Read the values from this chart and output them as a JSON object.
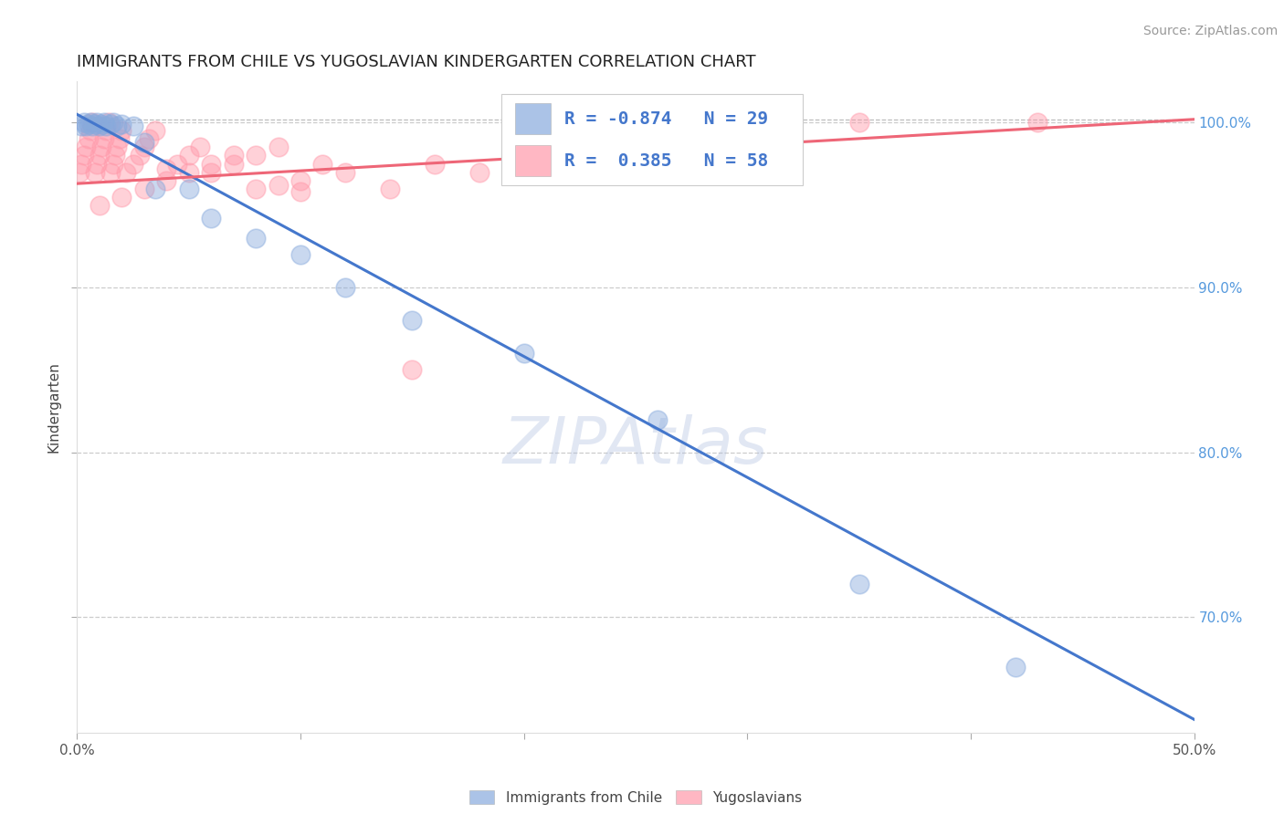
{
  "title": "IMMIGRANTS FROM CHILE VS YUGOSLAVIAN KINDERGARTEN CORRELATION CHART",
  "source": "Source: ZipAtlas.com",
  "xlabel_blue": "Immigrants from Chile",
  "xlabel_pink": "Yugoslavians",
  "ylabel": "Kindergarten",
  "watermark": "ZIPAtlas",
  "xlim": [
    0.0,
    0.5
  ],
  "ylim": [
    0.63,
    1.025
  ],
  "yticks": [
    0.7,
    0.8,
    0.9,
    1.0
  ],
  "ytick_labels": [
    "70.0%",
    "80.0%",
    "90.0%",
    "100.0%"
  ],
  "xticks": [
    0.0,
    0.1,
    0.2,
    0.3,
    0.4,
    0.5
  ],
  "xtick_labels": [
    "0.0%",
    "",
    "",
    "",
    "",
    "50.0%"
  ],
  "blue_R": -0.874,
  "blue_N": 29,
  "pink_R": 0.385,
  "pink_N": 58,
  "blue_color": "#88AADD",
  "pink_color": "#FF99AA",
  "blue_line_color": "#4477CC",
  "pink_line_color": "#EE6677",
  "title_fontsize": 13,
  "axis_label_fontsize": 11,
  "tick_fontsize": 11,
  "legend_fontsize": 14,
  "source_fontsize": 10,
  "watermark_fontsize": 52,
  "blue_scatter_x": [
    0.002,
    0.003,
    0.004,
    0.005,
    0.006,
    0.007,
    0.008,
    0.009,
    0.01,
    0.011,
    0.012,
    0.013,
    0.015,
    0.016,
    0.018,
    0.02,
    0.025,
    0.03,
    0.035,
    0.05,
    0.06,
    0.08,
    0.1,
    0.12,
    0.15,
    0.2,
    0.26,
    0.35,
    0.42
  ],
  "blue_scatter_y": [
    0.998,
    1.0,
    0.998,
    0.999,
    1.0,
    0.998,
    0.999,
    1.0,
    0.998,
    0.999,
    1.0,
    0.998,
    0.999,
    1.0,
    0.998,
    0.999,
    0.998,
    0.988,
    0.96,
    0.96,
    0.942,
    0.93,
    0.92,
    0.9,
    0.88,
    0.86,
    0.82,
    0.72,
    0.67
  ],
  "pink_scatter_x": [
    0.001,
    0.002,
    0.003,
    0.004,
    0.005,
    0.006,
    0.007,
    0.008,
    0.009,
    0.01,
    0.011,
    0.012,
    0.013,
    0.014,
    0.015,
    0.016,
    0.017,
    0.018,
    0.019,
    0.02,
    0.022,
    0.025,
    0.028,
    0.03,
    0.032,
    0.035,
    0.04,
    0.045,
    0.05,
    0.055,
    0.06,
    0.07,
    0.08,
    0.09,
    0.1,
    0.11,
    0.12,
    0.14,
    0.16,
    0.18,
    0.2,
    0.22,
    0.25,
    0.28,
    0.31,
    0.35,
    0.01,
    0.02,
    0.03,
    0.04,
    0.05,
    0.06,
    0.07,
    0.08,
    0.09,
    0.1,
    0.15,
    0.43
  ],
  "pink_scatter_y": [
    0.97,
    0.975,
    0.98,
    0.985,
    0.99,
    0.995,
    1.0,
    0.97,
    0.975,
    0.98,
    0.985,
    0.99,
    0.995,
    1.0,
    0.97,
    0.975,
    0.98,
    0.985,
    0.99,
    0.995,
    0.97,
    0.975,
    0.98,
    0.985,
    0.99,
    0.995,
    0.972,
    0.975,
    0.98,
    0.985,
    0.97,
    0.975,
    0.98,
    0.985,
    0.965,
    0.975,
    0.97,
    0.96,
    0.975,
    0.97,
    0.975,
    0.98,
    0.985,
    0.99,
    0.995,
    1.0,
    0.95,
    0.955,
    0.96,
    0.965,
    0.97,
    0.975,
    0.98,
    0.96,
    0.962,
    0.958,
    0.85,
    1.0
  ],
  "blue_trend_x": [
    0.0,
    0.5
  ],
  "blue_trend_y": [
    1.005,
    0.638
  ],
  "pink_trend_x": [
    0.0,
    0.5
  ],
  "pink_trend_y": [
    0.963,
    1.002
  ],
  "hline_y": 1.002,
  "background_color": "#FFFFFF"
}
